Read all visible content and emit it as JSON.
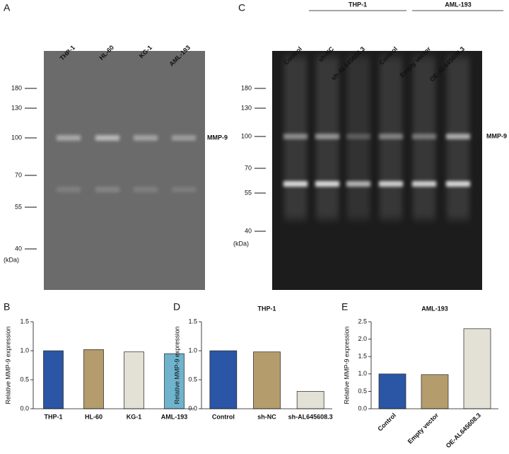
{
  "gels": [
    {
      "panel": "A",
      "lanes": [
        "THP-1",
        "HL-60",
        "KG-1",
        "AML-193"
      ],
      "markers": [
        180,
        130,
        100,
        70,
        55,
        40
      ],
      "unit": "(kDa)",
      "band_label": "MMP-9"
    },
    {
      "panel": "C",
      "groups": [
        "THP-1",
        "AML-193"
      ],
      "lanes": [
        "Control",
        "sh-NC",
        "sh-AL645608.3",
        "Control",
        "Empty vector",
        "OE-AL645608.3"
      ],
      "markers": [
        180,
        130,
        100,
        70,
        55,
        40
      ],
      "unit": "(kDa)",
      "band_label": "MMP-9"
    }
  ],
  "chart_data": [
    {
      "type": "bar",
      "panel": "B",
      "ylabel": "Relative MMP-9 expression",
      "categories": [
        "THP-1",
        "HL-60",
        "KG-1",
        "AML-193"
      ],
      "values": [
        1.0,
        1.02,
        0.98,
        0.95
      ],
      "colors": [
        "#2b56a5",
        "#b59c6c",
        "#e3e0d5",
        "#6fb3cd"
      ],
      "ylim": [
        0,
        1.5
      ],
      "yticks": [
        {
          "value": 0,
          "label": "0.0"
        },
        {
          "value": 0.5,
          "label": "0.5"
        },
        {
          "value": 1,
          "label": "1.0"
        },
        {
          "value": 1.5,
          "label": "1.5"
        }
      ]
    },
    {
      "type": "bar",
      "panel": "D",
      "title": "THP-1",
      "ylabel": "Relative MMP-9 expression",
      "categories": [
        "Control",
        "sh-NC",
        "sh-AL645608.3"
      ],
      "values": [
        1.0,
        0.98,
        0.3
      ],
      "colors": [
        "#2b56a5",
        "#b59c6c",
        "#e3e0d5"
      ],
      "ylim": [
        0,
        1.5
      ],
      "yticks": [
        {
          "value": 0,
          "label": "0.0"
        },
        {
          "value": 0.5,
          "label": "0.5"
        },
        {
          "value": 1,
          "label": "1.0"
        },
        {
          "value": 1.5,
          "label": "1.5"
        }
      ]
    },
    {
      "type": "bar",
      "panel": "E",
      "title": "AML-193",
      "ylabel": "Relative MMP-9 expression",
      "categories": [
        "Control",
        "Empty vector",
        "OE-AL645608.3"
      ],
      "values": [
        1.0,
        0.98,
        2.3
      ],
      "colors": [
        "#2b56a5",
        "#b59c6c",
        "#e3e0d5"
      ],
      "ylim": [
        0,
        2.5
      ],
      "yticks": [
        {
          "value": 0,
          "label": "0.0"
        },
        {
          "value": 0.5,
          "label": "0.5"
        },
        {
          "value": 1,
          "label": "1.0"
        },
        {
          "value": 1.5,
          "label": "1.5"
        },
        {
          "value": 2,
          "label": "2.0"
        },
        {
          "value": 2.5,
          "label": "2.5"
        }
      ],
      "xtick_rotation": 45
    }
  ]
}
